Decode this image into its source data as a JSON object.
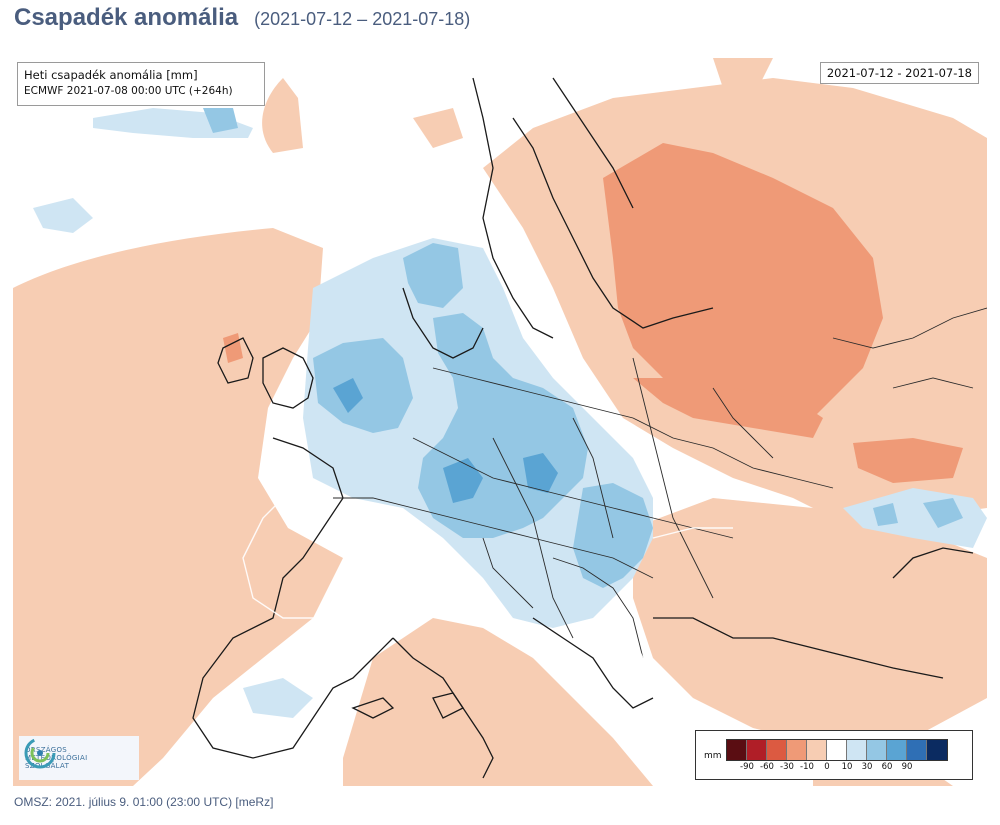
{
  "header": {
    "title": "Csapadék anomália",
    "date_range": "(2021-07-12 – 2021-07-18)"
  },
  "map": {
    "info_line1": "Heti csapadék anomália [mm]",
    "info_line2": "ECMWF 2021-07-08 00:00 UTC (+264h)",
    "date_label": "2021-07-12 - 2021-07-18",
    "background_color": "#ffffff",
    "land_border_color": "#1a1a1a"
  },
  "legend": {
    "unit": "mm",
    "colors": [
      "#5a0d12",
      "#b01e27",
      "#dc5a41",
      "#ef9a77",
      "#f7cdb3",
      "#ffffff",
      "#cfe5f3",
      "#94c7e4",
      "#5aa4d3",
      "#2f6fb5",
      "#0b2b61"
    ],
    "ticks": [
      "-90",
      "-60",
      "-30",
      "-10",
      "0",
      "10",
      "30",
      "60",
      "90"
    ]
  },
  "logo": {
    "icon": "omsz-logo-icon",
    "line1": "ORSZÁGOS",
    "line2": "METEOROLÓGIAI",
    "line3": "SZOLGÁLAT"
  },
  "footer": {
    "text": "OMSZ: 2021. július 9. 01:00 (23:00  UTC)  [meRz]"
  }
}
